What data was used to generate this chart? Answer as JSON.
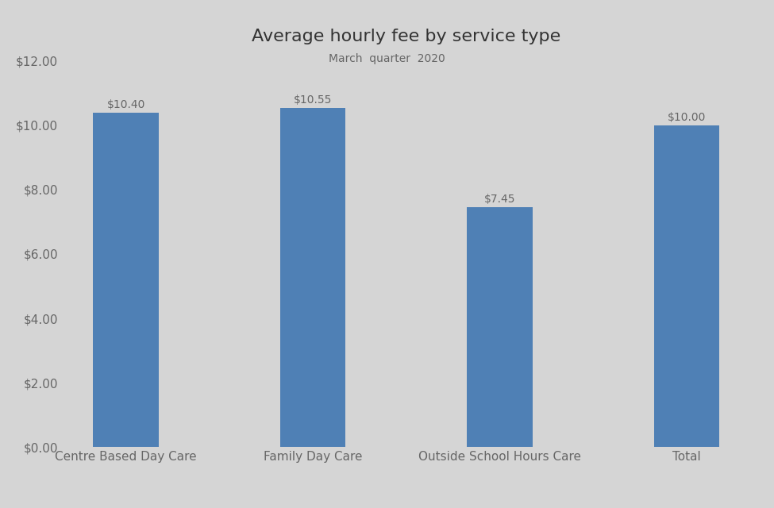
{
  "categories": [
    "Centre Based Day Care",
    "Family Day Care",
    "Outside School Hours Care",
    "Total"
  ],
  "values": [
    10.4,
    10.55,
    7.45,
    10.0
  ],
  "bar_color": "#4f80b5",
  "title": "Average hourly fee by service type",
  "subtitle": "March  quarter  2020",
  "ylim": [
    0,
    12
  ],
  "yticks": [
    0,
    2,
    4,
    6,
    8,
    10,
    12
  ],
  "background_color": "#d5d5d5",
  "title_fontsize": 16,
  "subtitle_fontsize": 10,
  "tick_label_fontsize": 11,
  "value_label_fontsize": 10,
  "bar_width": 0.35,
  "label_color": "#666666",
  "title_color": "#333333"
}
